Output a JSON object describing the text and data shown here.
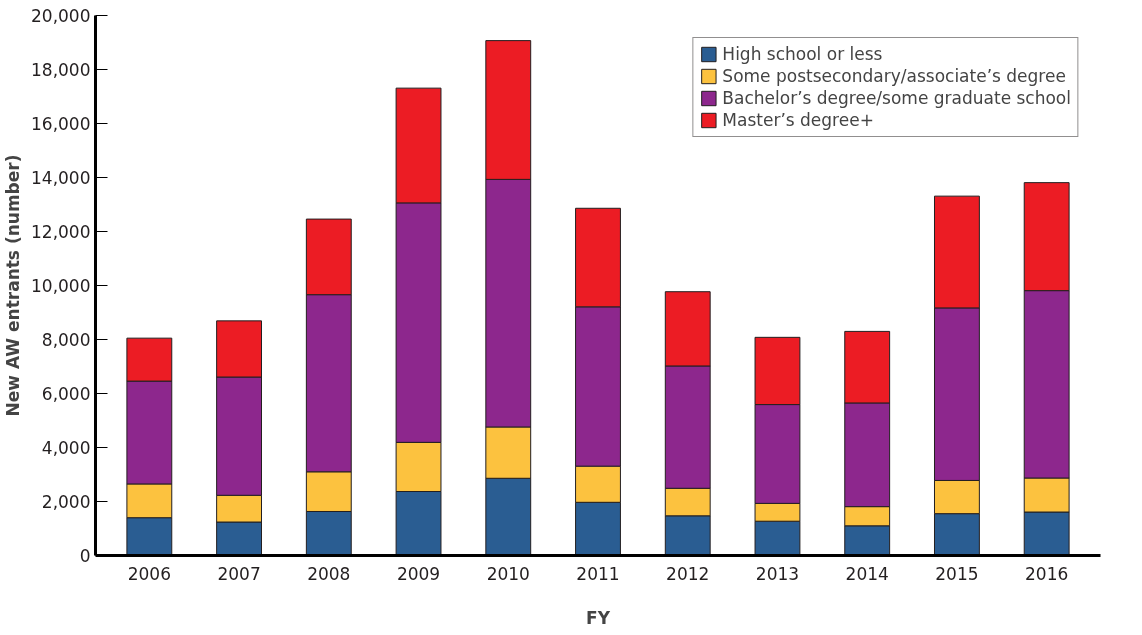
{
  "chart_data": {
    "type": "bar",
    "stacked": true,
    "xlabel": "FY",
    "ylabel": "New AW entrants (number)",
    "categories": [
      "2006",
      "2007",
      "2008",
      "2009",
      "2010",
      "2011",
      "2012",
      "2013",
      "2014",
      "2015",
      "2016"
    ],
    "series": [
      {
        "name": "High school or less",
        "color": "#2a5d92",
        "values": [
          1400,
          1240,
          1630,
          2370,
          2860,
          1970,
          1470,
          1270,
          1100,
          1550,
          1610
        ]
      },
      {
        "name": "Some postsecondary/associate’s degree",
        "color": "#fcc23f",
        "values": [
          1250,
          990,
          1470,
          1820,
          1900,
          1340,
          1020,
          660,
          710,
          1230,
          1260
        ]
      },
      {
        "name": "Bachelor’s degree/some graduate school",
        "color": "#8d278d",
        "values": [
          3810,
          4380,
          6560,
          8870,
          9170,
          5900,
          4530,
          3660,
          3840,
          6390,
          6940
        ]
      },
      {
        "name": "Master’s degree+",
        "color": "#ec1c24",
        "values": [
          1590,
          2080,
          2800,
          4250,
          5140,
          3650,
          2750,
          2490,
          2650,
          4140,
          4000
        ]
      }
    ],
    "ylim": [
      0,
      20000
    ],
    "yticks": [
      0,
      {
        "value": 2000,
        "label": "2,000"
      },
      {
        "value": 4000,
        "label": "4,000"
      },
      {
        "value": 6000,
        "label": "6,000"
      },
      {
        "value": 8000,
        "label": "8,000"
      },
      {
        "value": 10000,
        "label": "10,000"
      },
      {
        "value": 12000,
        "label": "12,000"
      },
      {
        "value": 14000,
        "label": "14,000"
      },
      {
        "value": 16000,
        "label": "16,000"
      },
      {
        "value": 18000,
        "label": "18,000"
      },
      {
        "value": 20000,
        "label": "20,000"
      }
    ],
    "grid": false,
    "legend": "top right"
  }
}
